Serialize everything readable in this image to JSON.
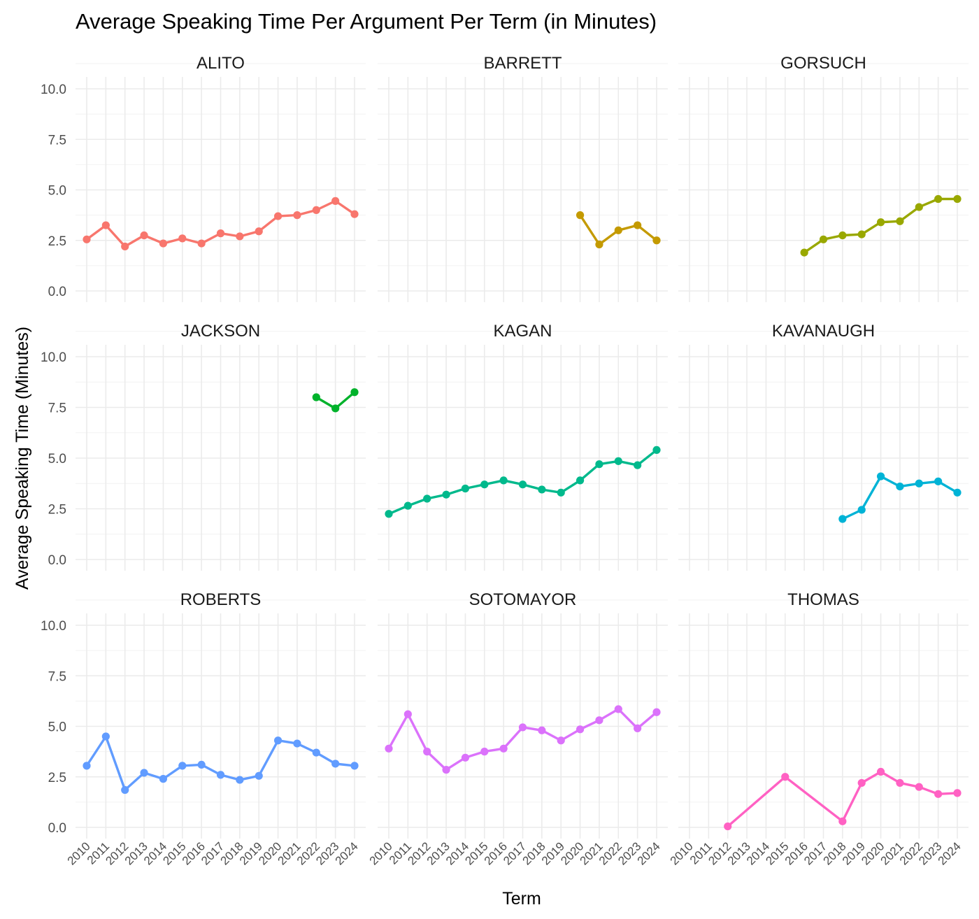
{
  "chart_data": {
    "type": "line",
    "title": "Average Speaking Time Per Argument Per Term (in Minutes)",
    "xlabel": "Term",
    "ylabel": "Average Speaking Time (Minutes)",
    "x_categories": [
      "2010",
      "2011",
      "2012",
      "2013",
      "2014",
      "2015",
      "2016",
      "2017",
      "2018",
      "2019",
      "2020",
      "2021",
      "2022",
      "2023",
      "2024"
    ],
    "ylim": [
      0,
      10
    ],
    "y_ticks": [
      "0.0",
      "2.5",
      "5.0",
      "7.5",
      "10.0"
    ],
    "grid": true,
    "legend": "none",
    "panels": [
      {
        "name": "ALITO",
        "color": "#F8766D",
        "points": [
          [
            "2010",
            2.55
          ],
          [
            "2011",
            3.25
          ],
          [
            "2012",
            2.2
          ],
          [
            "2013",
            2.75
          ],
          [
            "2014",
            2.35
          ],
          [
            "2015",
            2.6
          ],
          [
            "2016",
            2.35
          ],
          [
            "2017",
            2.85
          ],
          [
            "2018",
            2.7
          ],
          [
            "2019",
            2.95
          ],
          [
            "2020",
            3.7
          ],
          [
            "2021",
            3.75
          ],
          [
            "2022",
            4.0
          ],
          [
            "2023",
            4.45
          ],
          [
            "2024",
            3.8
          ]
        ]
      },
      {
        "name": "BARRETT",
        "color": "#C49A00",
        "points": [
          [
            "2020",
            3.75
          ],
          [
            "2021",
            2.3
          ],
          [
            "2022",
            3.0
          ],
          [
            "2023",
            3.25
          ],
          [
            "2024",
            2.5
          ]
        ]
      },
      {
        "name": "GORSUCH",
        "color": "#99A800",
        "points": [
          [
            "2016",
            1.9
          ],
          [
            "2017",
            2.55
          ],
          [
            "2018",
            2.75
          ],
          [
            "2019",
            2.8
          ],
          [
            "2020",
            3.4
          ],
          [
            "2021",
            3.45
          ],
          [
            "2022",
            4.15
          ],
          [
            "2023",
            4.55
          ],
          [
            "2024",
            4.55
          ]
        ]
      },
      {
        "name": "JACKSON",
        "color": "#00B22B",
        "points": [
          [
            "2022",
            8.0
          ],
          [
            "2023",
            7.45
          ],
          [
            "2024",
            8.25
          ]
        ]
      },
      {
        "name": "KAGAN",
        "color": "#00B98C",
        "points": [
          [
            "2010",
            2.25
          ],
          [
            "2011",
            2.65
          ],
          [
            "2012",
            3.0
          ],
          [
            "2013",
            3.2
          ],
          [
            "2014",
            3.5
          ],
          [
            "2015",
            3.7
          ],
          [
            "2016",
            3.9
          ],
          [
            "2017",
            3.7
          ],
          [
            "2018",
            3.45
          ],
          [
            "2019",
            3.3
          ],
          [
            "2020",
            3.9
          ],
          [
            "2021",
            4.7
          ],
          [
            "2022",
            4.85
          ],
          [
            "2023",
            4.65
          ],
          [
            "2024",
            5.4
          ]
        ]
      },
      {
        "name": "KAVANAUGH",
        "color": "#00B3D6",
        "points": [
          [
            "2018",
            2.0
          ],
          [
            "2019",
            2.45
          ],
          [
            "2020",
            4.1
          ],
          [
            "2021",
            3.6
          ],
          [
            "2022",
            3.75
          ],
          [
            "2023",
            3.85
          ],
          [
            "2024",
            3.3
          ]
        ]
      },
      {
        "name": "ROBERTS",
        "color": "#619CFF",
        "points": [
          [
            "2010",
            3.05
          ],
          [
            "2011",
            4.5
          ],
          [
            "2012",
            1.85
          ],
          [
            "2013",
            2.7
          ],
          [
            "2014",
            2.4
          ],
          [
            "2015",
            3.05
          ],
          [
            "2016",
            3.1
          ],
          [
            "2017",
            2.6
          ],
          [
            "2018",
            2.35
          ],
          [
            "2019",
            2.55
          ],
          [
            "2020",
            4.3
          ],
          [
            "2021",
            4.15
          ],
          [
            "2022",
            3.7
          ],
          [
            "2023",
            3.15
          ],
          [
            "2024",
            3.05
          ]
        ]
      },
      {
        "name": "SOTOMAYOR",
        "color": "#DB72FB",
        "points": [
          [
            "2010",
            3.9
          ],
          [
            "2011",
            5.6
          ],
          [
            "2012",
            3.75
          ],
          [
            "2013",
            2.85
          ],
          [
            "2014",
            3.45
          ],
          [
            "2015",
            3.75
          ],
          [
            "2016",
            3.9
          ],
          [
            "2017",
            4.95
          ],
          [
            "2018",
            4.8
          ],
          [
            "2019",
            4.3
          ],
          [
            "2020",
            4.85
          ],
          [
            "2021",
            5.3
          ],
          [
            "2022",
            5.85
          ],
          [
            "2023",
            4.9
          ],
          [
            "2024",
            5.7
          ]
        ]
      },
      {
        "name": "THOMAS",
        "color": "#FF61C3",
        "points": [
          [
            "2012",
            0.05
          ],
          [
            "2015",
            2.5
          ],
          [
            "2018",
            0.3
          ],
          [
            "2019",
            2.2
          ],
          [
            "2020",
            2.75
          ],
          [
            "2021",
            2.2
          ],
          [
            "2022",
            2.0
          ],
          [
            "2023",
            1.65
          ],
          [
            "2024",
            1.7
          ]
        ]
      }
    ]
  }
}
